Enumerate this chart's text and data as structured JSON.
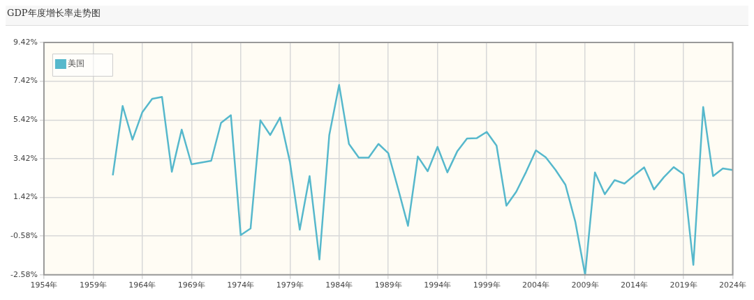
{
  "chart_data": {
    "type": "line",
    "title": "GDP年度增长率走势图",
    "x": [
      1961,
      1962,
      1963,
      1964,
      1965,
      1966,
      1967,
      1968,
      1969,
      1970,
      1971,
      1972,
      1973,
      1974,
      1975,
      1976,
      1977,
      1978,
      1979,
      1980,
      1981,
      1982,
      1983,
      1984,
      1985,
      1986,
      1987,
      1988,
      1989,
      1990,
      1991,
      1992,
      1993,
      1994,
      1995,
      1996,
      1997,
      1998,
      1999,
      2000,
      2001,
      2002,
      2003,
      2004,
      2005,
      2006,
      2007,
      2008,
      2009,
      2010,
      2011,
      2012,
      2013,
      2014,
      2015,
      2016,
      2017,
      2018,
      2019,
      2020,
      2021,
      2022,
      2023,
      2024
    ],
    "series": [
      {
        "name": "美国",
        "color": "#56b8cc",
        "values": [
          2.56,
          6.14,
          4.4,
          5.82,
          6.51,
          6.61,
          2.74,
          4.92,
          3.13,
          3.22,
          3.31,
          5.27,
          5.66,
          -0.53,
          -0.19,
          5.4,
          4.64,
          5.54,
          3.25,
          -0.25,
          2.52,
          -1.79,
          4.64,
          7.23,
          4.18,
          3.47,
          3.47,
          4.18,
          3.7,
          1.86,
          -0.05,
          3.53,
          2.77,
          4.03,
          2.71,
          3.79,
          4.46,
          4.48,
          4.8,
          4.09,
          0.99,
          1.71,
          2.73,
          3.85,
          3.49,
          2.83,
          2.07,
          0.17,
          -2.58,
          2.71,
          1.58,
          2.31,
          2.13,
          2.56,
          2.97,
          1.83,
          2.46,
          2.98,
          2.62,
          -2.07,
          6.09,
          2.52,
          2.91,
          2.83
        ]
      }
    ],
    "xlim": [
      1954,
      2024
    ],
    "xticks": [
      {
        "value": 1954,
        "label": "1954年"
      },
      {
        "value": 1959,
        "label": "1959年"
      },
      {
        "value": 1964,
        "label": "1964年"
      },
      {
        "value": 1969,
        "label": "1969年"
      },
      {
        "value": 1974,
        "label": "1974年"
      },
      {
        "value": 1979,
        "label": "1979年"
      },
      {
        "value": 1984,
        "label": "1984年"
      },
      {
        "value": 1989,
        "label": "1989年"
      },
      {
        "value": 1994,
        "label": "1994年"
      },
      {
        "value": 1999,
        "label": "1999年"
      },
      {
        "value": 2004,
        "label": "2004年"
      },
      {
        "value": 2009,
        "label": "2009年"
      },
      {
        "value": 2014,
        "label": "2014年"
      },
      {
        "value": 2019,
        "label": "2019年"
      },
      {
        "value": 2024,
        "label": "2024年"
      }
    ],
    "ylim": [
      -2.58,
      9.42
    ],
    "yticks": [
      {
        "value": -2.58,
        "label": "-2.58%"
      },
      {
        "value": -0.58,
        "label": "-0.58%"
      },
      {
        "value": 1.42,
        "label": "1.42%"
      },
      {
        "value": 3.42,
        "label": "3.42%"
      },
      {
        "value": 5.42,
        "label": "5.42%"
      },
      {
        "value": 7.42,
        "label": "7.42%"
      },
      {
        "value": 9.42,
        "label": "9.42%"
      }
    ],
    "grid": true,
    "legend": "top left",
    "marker": "none",
    "line_style": "solid"
  }
}
